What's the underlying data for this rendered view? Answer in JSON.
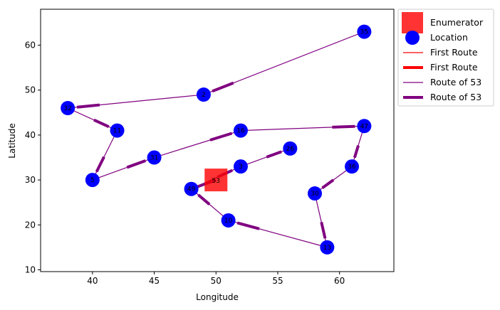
{
  "chart_data": {
    "type": "scatter",
    "title": "",
    "xlabel": "Longitude",
    "ylabel": "Latitude",
    "xlim": [
      35.8,
      64.4
    ],
    "ylim": [
      9.6,
      68.0
    ],
    "xticks": [
      40,
      45,
      50,
      55,
      60
    ],
    "yticks": [
      10,
      20,
      30,
      40,
      50,
      60
    ],
    "grid": false,
    "legend_placement": "outside-top-right",
    "enumerator": {
      "label": "53",
      "x": 50,
      "y": 30,
      "color": "#ff0000"
    },
    "locations": [
      {
        "id": "35",
        "x": 62,
        "y": 63
      },
      {
        "id": "2",
        "x": 49,
        "y": 49
      },
      {
        "id": "32",
        "x": 38,
        "y": 46
      },
      {
        "id": "11",
        "x": 42,
        "y": 41
      },
      {
        "id": "5",
        "x": 40,
        "y": 30
      },
      {
        "id": "31",
        "x": 45,
        "y": 35
      },
      {
        "id": "16",
        "x": 52,
        "y": 41
      },
      {
        "id": "47",
        "x": 62,
        "y": 42
      },
      {
        "id": "36",
        "x": 61,
        "y": 33
      },
      {
        "id": "30",
        "x": 58,
        "y": 27
      },
      {
        "id": "13",
        "x": 59,
        "y": 15
      },
      {
        "id": "10",
        "x": 51,
        "y": 21
      },
      {
        "id": "49",
        "x": 48,
        "y": 28
      },
      {
        "id": "3",
        "x": 52,
        "y": 33
      },
      {
        "id": "26",
        "x": 56,
        "y": 37
      }
    ],
    "route_53": [
      "53",
      "49",
      "3",
      "26"
    ],
    "route_53_cont": [
      "35",
      "2",
      "32",
      "11",
      "5",
      "31",
      "16",
      "47",
      "36",
      "30",
      "13",
      "10",
      "49",
      "3",
      "26"
    ],
    "route_color": "#800080",
    "location_color": "#0000ff",
    "legend": [
      {
        "label": "Enumerator",
        "kind": "square",
        "color": "#ff0000"
      },
      {
        "label": "Location",
        "kind": "circle",
        "color": "#0000ff"
      },
      {
        "label": "First Route",
        "kind": "thin",
        "color": "#ff0000"
      },
      {
        "label": "First Route",
        "kind": "thick",
        "color": "#ff0000"
      },
      {
        "label": "Route of 53",
        "kind": "thin",
        "color": "#800080"
      },
      {
        "label": "Route of 53",
        "kind": "thick",
        "color": "#800080"
      }
    ]
  }
}
